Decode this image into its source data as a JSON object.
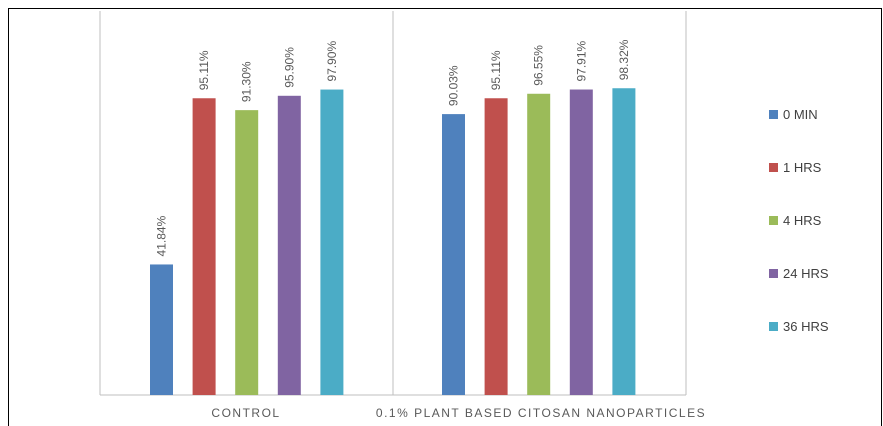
{
  "chart_data": {
    "type": "bar",
    "title": "",
    "xlabel": "",
    "ylabel": "",
    "ylim": [
      0,
      1
    ],
    "categories": [
      "CONTROL",
      "0.1% PLANT BASED CITOSAN NANOPARTICLES"
    ],
    "series": [
      {
        "name": "0 MIN",
        "color": "#4F81BD",
        "values": [
          0.4184,
          0.9003
        ],
        "labels": [
          "41.84%",
          "90.03%"
        ]
      },
      {
        "name": "1 HRS",
        "color": "#C0504D",
        "values": [
          0.9511,
          0.9511
        ],
        "labels": [
          "95.11%",
          "95.11%"
        ]
      },
      {
        "name": "4 HRS",
        "color": "#9BBB59",
        "values": [
          0.913,
          0.9655
        ],
        "labels": [
          "91.30%",
          "96.55%"
        ]
      },
      {
        "name": "24 HRS",
        "color": "#8064A2",
        "values": [
          0.959,
          0.9791
        ],
        "labels": [
          "95.90%",
          "97.91%"
        ]
      },
      {
        "name": "36 HRS",
        "color": "#4BACC6",
        "values": [
          0.979,
          0.9832
        ],
        "labels": [
          "97.90%",
          "98.32%"
        ]
      }
    ],
    "legend": "right",
    "grid": false
  }
}
